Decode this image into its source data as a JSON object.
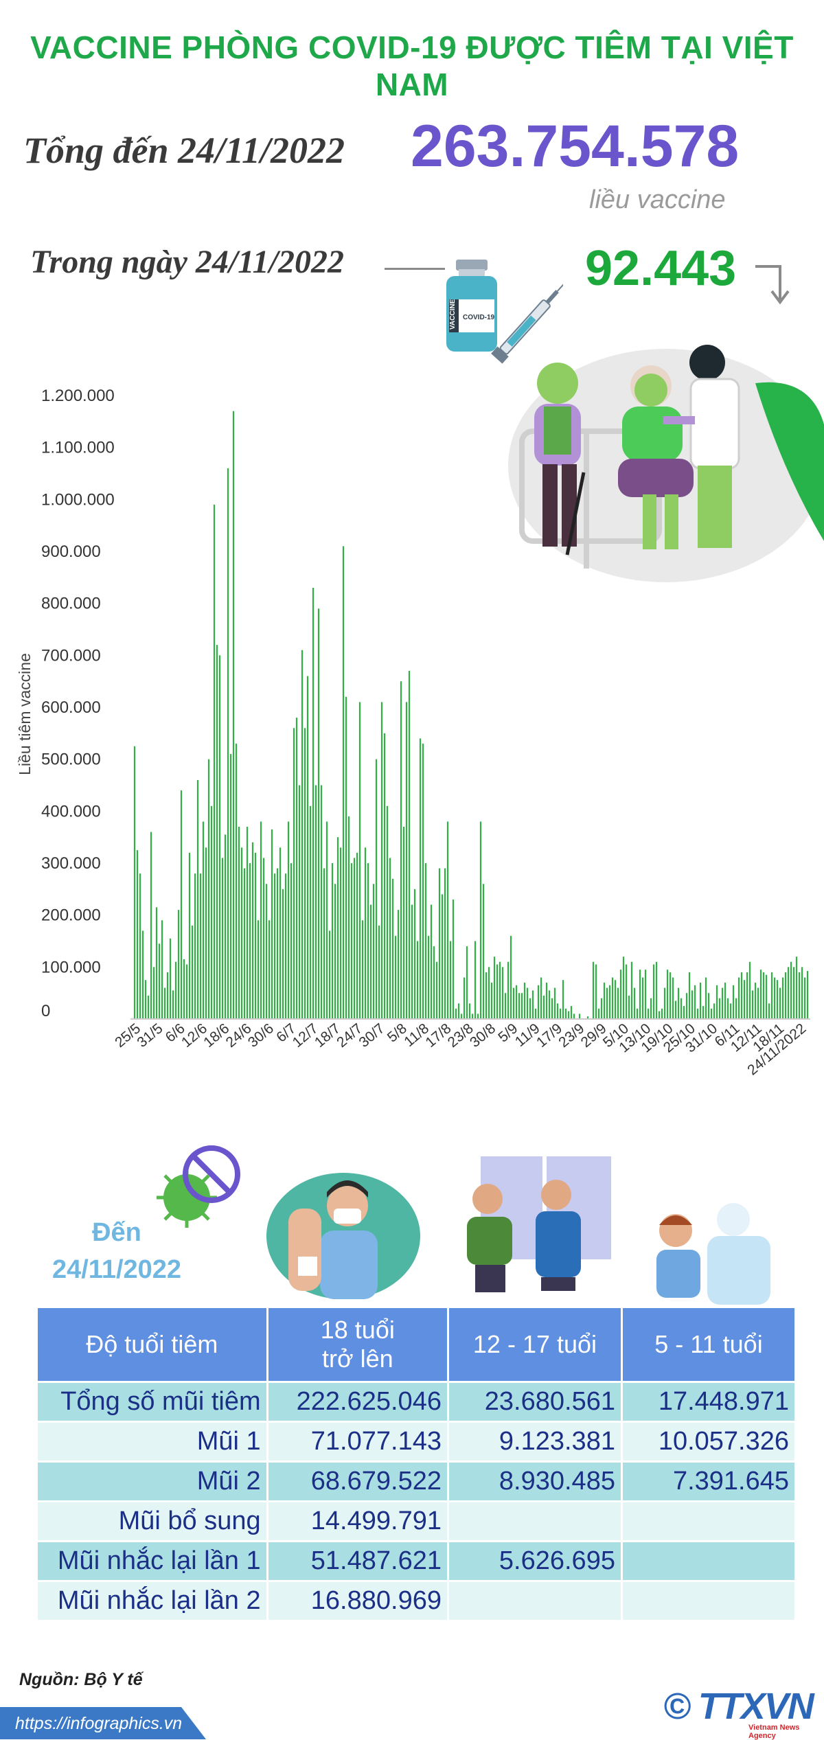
{
  "title": "VACCINE PHÒNG COVID-19 ĐƯỢC TIÊM TẠI VIỆT NAM",
  "summary": {
    "total_label": "Tổng đến 24/11/2022",
    "total_value": "263.754.578",
    "total_unit": "liều vaccine",
    "day_label": "Trong ngày 24/11/2022",
    "day_value": "92.443",
    "vial_text": "VACCINE",
    "vial_label": "COVID-19"
  },
  "colors": {
    "title": "#1fa84a",
    "total": "#6a55cc",
    "day": "#1da83c",
    "bar": "#2fb043",
    "header": "#5f8fe0",
    "row_odd": "#a9dfe2",
    "row_even": "#e4f5f6",
    "cell_text": "#1b2f86"
  },
  "chart_data": {
    "type": "bar",
    "ylabel": "Liều tiêm vaccine",
    "ylim": [
      0,
      1200000
    ],
    "yticks": [
      0,
      100000,
      200000,
      300000,
      400000,
      500000,
      600000,
      700000,
      800000,
      900000,
      1000000,
      1100000,
      1200000
    ],
    "ytick_labels": [
      "0",
      "100.000",
      "200.000",
      "300.000",
      "400.000",
      "500.000",
      "600.000",
      "700.000",
      "800.000",
      "900.000",
      "1.000.000",
      "1.100.000",
      "1.200.000"
    ],
    "x_tick_labels": [
      "25/5",
      "31/5",
      "6/6",
      "12/6",
      "18/6",
      "24/6",
      "30/6",
      "6/7",
      "12/7",
      "18/7",
      "24/7",
      "30/7",
      "5/8",
      "11/8",
      "17/8",
      "23/8",
      "30/8",
      "5/9",
      "11/9",
      "17/9",
      "23/9",
      "29/9",
      "5/10",
      "13/10",
      "19/10",
      "25/10",
      "31/10",
      "6/11",
      "12/11",
      "18/11",
      "24/11/2022"
    ],
    "values": [
      525000,
      325000,
      280000,
      170000,
      75000,
      45000,
      360000,
      100000,
      215000,
      145000,
      190000,
      60000,
      90000,
      155000,
      55000,
      110000,
      210000,
      440000,
      115000,
      105000,
      320000,
      180000,
      280000,
      460000,
      280000,
      380000,
      330000,
      500000,
      410000,
      990000,
      720000,
      700000,
      310000,
      355000,
      1060000,
      510000,
      1170000,
      530000,
      370000,
      330000,
      290000,
      370000,
      300000,
      340000,
      320000,
      190000,
      380000,
      310000,
      260000,
      190000,
      365000,
      280000,
      290000,
      330000,
      250000,
      280000,
      380000,
      300000,
      560000,
      580000,
      450000,
      710000,
      560000,
      660000,
      410000,
      830000,
      450000,
      790000,
      450000,
      290000,
      380000,
      170000,
      300000,
      260000,
      350000,
      330000,
      910000,
      620000,
      390000,
      300000,
      310000,
      320000,
      610000,
      190000,
      330000,
      300000,
      220000,
      260000,
      500000,
      180000,
      610000,
      550000,
      410000,
      310000,
      270000,
      160000,
      210000,
      650000,
      370000,
      610000,
      670000,
      220000,
      250000,
      150000,
      540000,
      530000,
      300000,
      160000,
      220000,
      140000,
      110000,
      290000,
      240000,
      290000,
      380000,
      150000,
      230000,
      20000,
      30000,
      10000,
      80000,
      140000,
      30000,
      10000,
      150000,
      10000,
      380000,
      260000,
      90000,
      100000,
      70000,
      120000,
      105000,
      110000,
      100000,
      50000,
      110000,
      160000,
      60000,
      65000,
      50000,
      50000,
      70000,
      60000,
      40000,
      55000,
      20000,
      65000,
      80000,
      45000,
      70000,
      55000,
      40000,
      60000,
      30000,
      20000,
      75000,
      20000,
      15000,
      25000,
      10000,
      0,
      10000,
      0,
      0,
      5000,
      0,
      110000,
      105000,
      20000,
      40000,
      70000,
      60000,
      65000,
      80000,
      75000,
      60000,
      95000,
      120000,
      105000,
      45000,
      110000,
      60000,
      20000,
      95000,
      80000,
      95000,
      20000,
      40000,
      105000,
      110000,
      15000,
      20000,
      60000,
      95000,
      90000,
      80000,
      35000,
      60000,
      40000,
      25000,
      50000,
      90000,
      55000,
      65000,
      20000,
      70000,
      25000,
      80000,
      50000,
      20000,
      30000,
      65000,
      40000,
      60000,
      70000,
      40000,
      30000,
      65000,
      40000,
      80000,
      90000,
      75000,
      90000,
      110000,
      55000,
      70000,
      60000,
      95000,
      90000,
      85000,
      30000,
      90000,
      80000,
      75000,
      60000,
      80000,
      90000,
      100000,
      110000,
      100000,
      120000,
      90000,
      100000,
      80000,
      92443
    ]
  },
  "section2": {
    "den_line1": "Đến",
    "den_line2": "24/11/2022"
  },
  "table": {
    "headers": [
      "Độ tuổi tiêm",
      "18 tuổi\ntrở lên",
      "12 - 17 tuổi",
      "5 - 11 tuổi"
    ],
    "rows": [
      [
        "Tổng số mũi tiêm",
        "222.625.046",
        "23.680.561",
        "17.448.971"
      ],
      [
        "Mũi 1",
        "71.077.143",
        "9.123.381",
        "10.057.326"
      ],
      [
        "Mũi 2",
        "68.679.522",
        "8.930.485",
        "7.391.645"
      ],
      [
        "Mũi bổ sung",
        "14.499.791",
        "",
        ""
      ],
      [
        "Mũi nhắc lại lần 1",
        "51.487.621",
        "5.626.695",
        ""
      ],
      [
        "Mũi nhắc lại lần 2",
        "16.880.969",
        "",
        ""
      ]
    ]
  },
  "footer": {
    "source": "Nguồn: Bộ Y tế",
    "url": "https://infographics.vn",
    "logo": "© TTXVN",
    "logo_sub": "Vietnam News Agency"
  }
}
